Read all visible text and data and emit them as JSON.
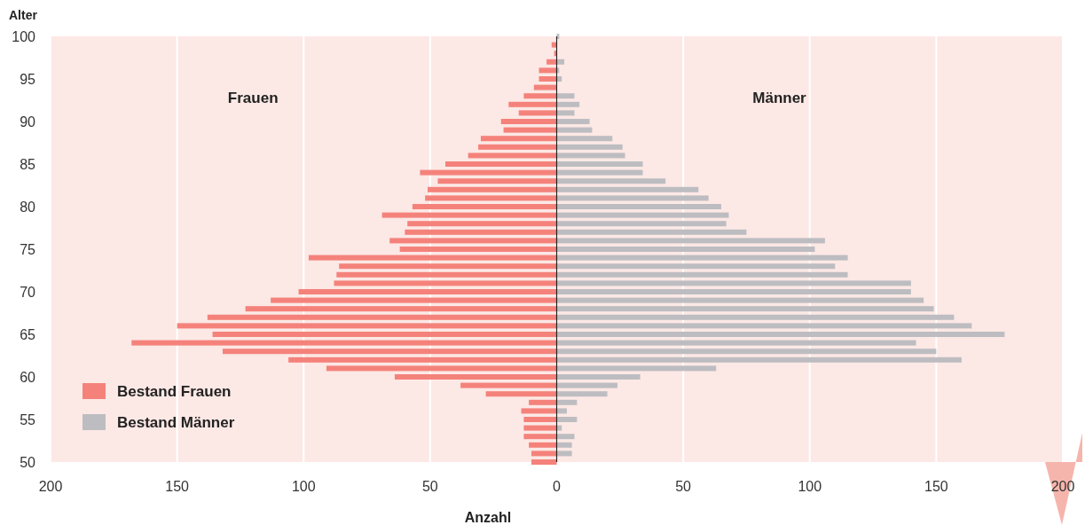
{
  "chart_data": {
    "type": "bar",
    "orientation": "horizontal",
    "x": [
      99,
      98,
      97,
      96,
      95,
      94,
      93,
      92,
      91,
      90,
      89,
      88,
      87,
      86,
      85,
      84,
      83,
      82,
      81,
      80,
      79,
      78,
      77,
      76,
      75,
      74,
      73,
      72,
      71,
      70,
      69,
      68,
      67,
      66,
      65,
      64,
      63,
      62,
      61,
      60,
      59,
      58,
      57,
      56,
      55,
      54,
      53,
      52,
      51,
      50
    ],
    "series": [
      {
        "name": "Bestand Frauen",
        "color": "#f4827b",
        "values": [
          -2,
          -1,
          -4,
          -7,
          -7,
          -9,
          -13,
          -19,
          -15,
          -22,
          -21,
          -30,
          -31,
          -35,
          -44,
          -54,
          -47,
          -51,
          -52,
          -57,
          -69,
          -59,
          -60,
          -66,
          -62,
          -98,
          -86,
          -87,
          -88,
          -102,
          -113,
          -123,
          -138,
          -150,
          -136,
          -168,
          -132,
          -106,
          -91,
          -64,
          -38,
          -28,
          -11,
          -14,
          -13,
          -13,
          -13,
          -11,
          -10,
          -10
        ]
      },
      {
        "name": "Bestand Männer",
        "color": "#bdbdc1",
        "x": [
          100,
          99,
          98,
          97,
          96,
          95,
          94,
          93,
          92,
          91,
          90,
          89,
          88,
          87,
          86,
          85,
          84,
          83,
          82,
          81,
          80,
          79,
          78,
          77,
          76,
          75,
          74,
          73,
          72,
          71,
          70,
          69,
          68,
          67,
          66,
          65,
          64,
          63,
          62,
          61,
          60,
          59,
          58,
          57,
          56,
          55,
          54,
          53,
          52,
          51
        ],
        "values": [
          1,
          0,
          0,
          3,
          1,
          2,
          0,
          7,
          9,
          7,
          13,
          14,
          22,
          26,
          27,
          34,
          34,
          43,
          56,
          60,
          65,
          68,
          67,
          75,
          106,
          102,
          115,
          110,
          115,
          140,
          140,
          145,
          149,
          157,
          164,
          177,
          142,
          150,
          160,
          63,
          33,
          24,
          20,
          8,
          4,
          8,
          2,
          7,
          6,
          6
        ]
      }
    ],
    "xlim": [
      -200,
      200
    ],
    "xticks": [
      {
        "value": -200,
        "label": "200"
      },
      {
        "value": -150,
        "label": "150"
      },
      {
        "value": -100,
        "label": "100"
      },
      {
        "value": -50,
        "label": "50"
      },
      0,
      50,
      100,
      150,
      200
    ],
    "ylim": [
      50,
      100
    ],
    "yticks": [
      50,
      55,
      60,
      65,
      70,
      75,
      80,
      85,
      90,
      95,
      100
    ],
    "xlabel": "Anzahl",
    "ylabel": "Alter",
    "annotations": [
      "Frauen",
      "Männer"
    ],
    "grid": "x",
    "legend": "bottom left"
  }
}
